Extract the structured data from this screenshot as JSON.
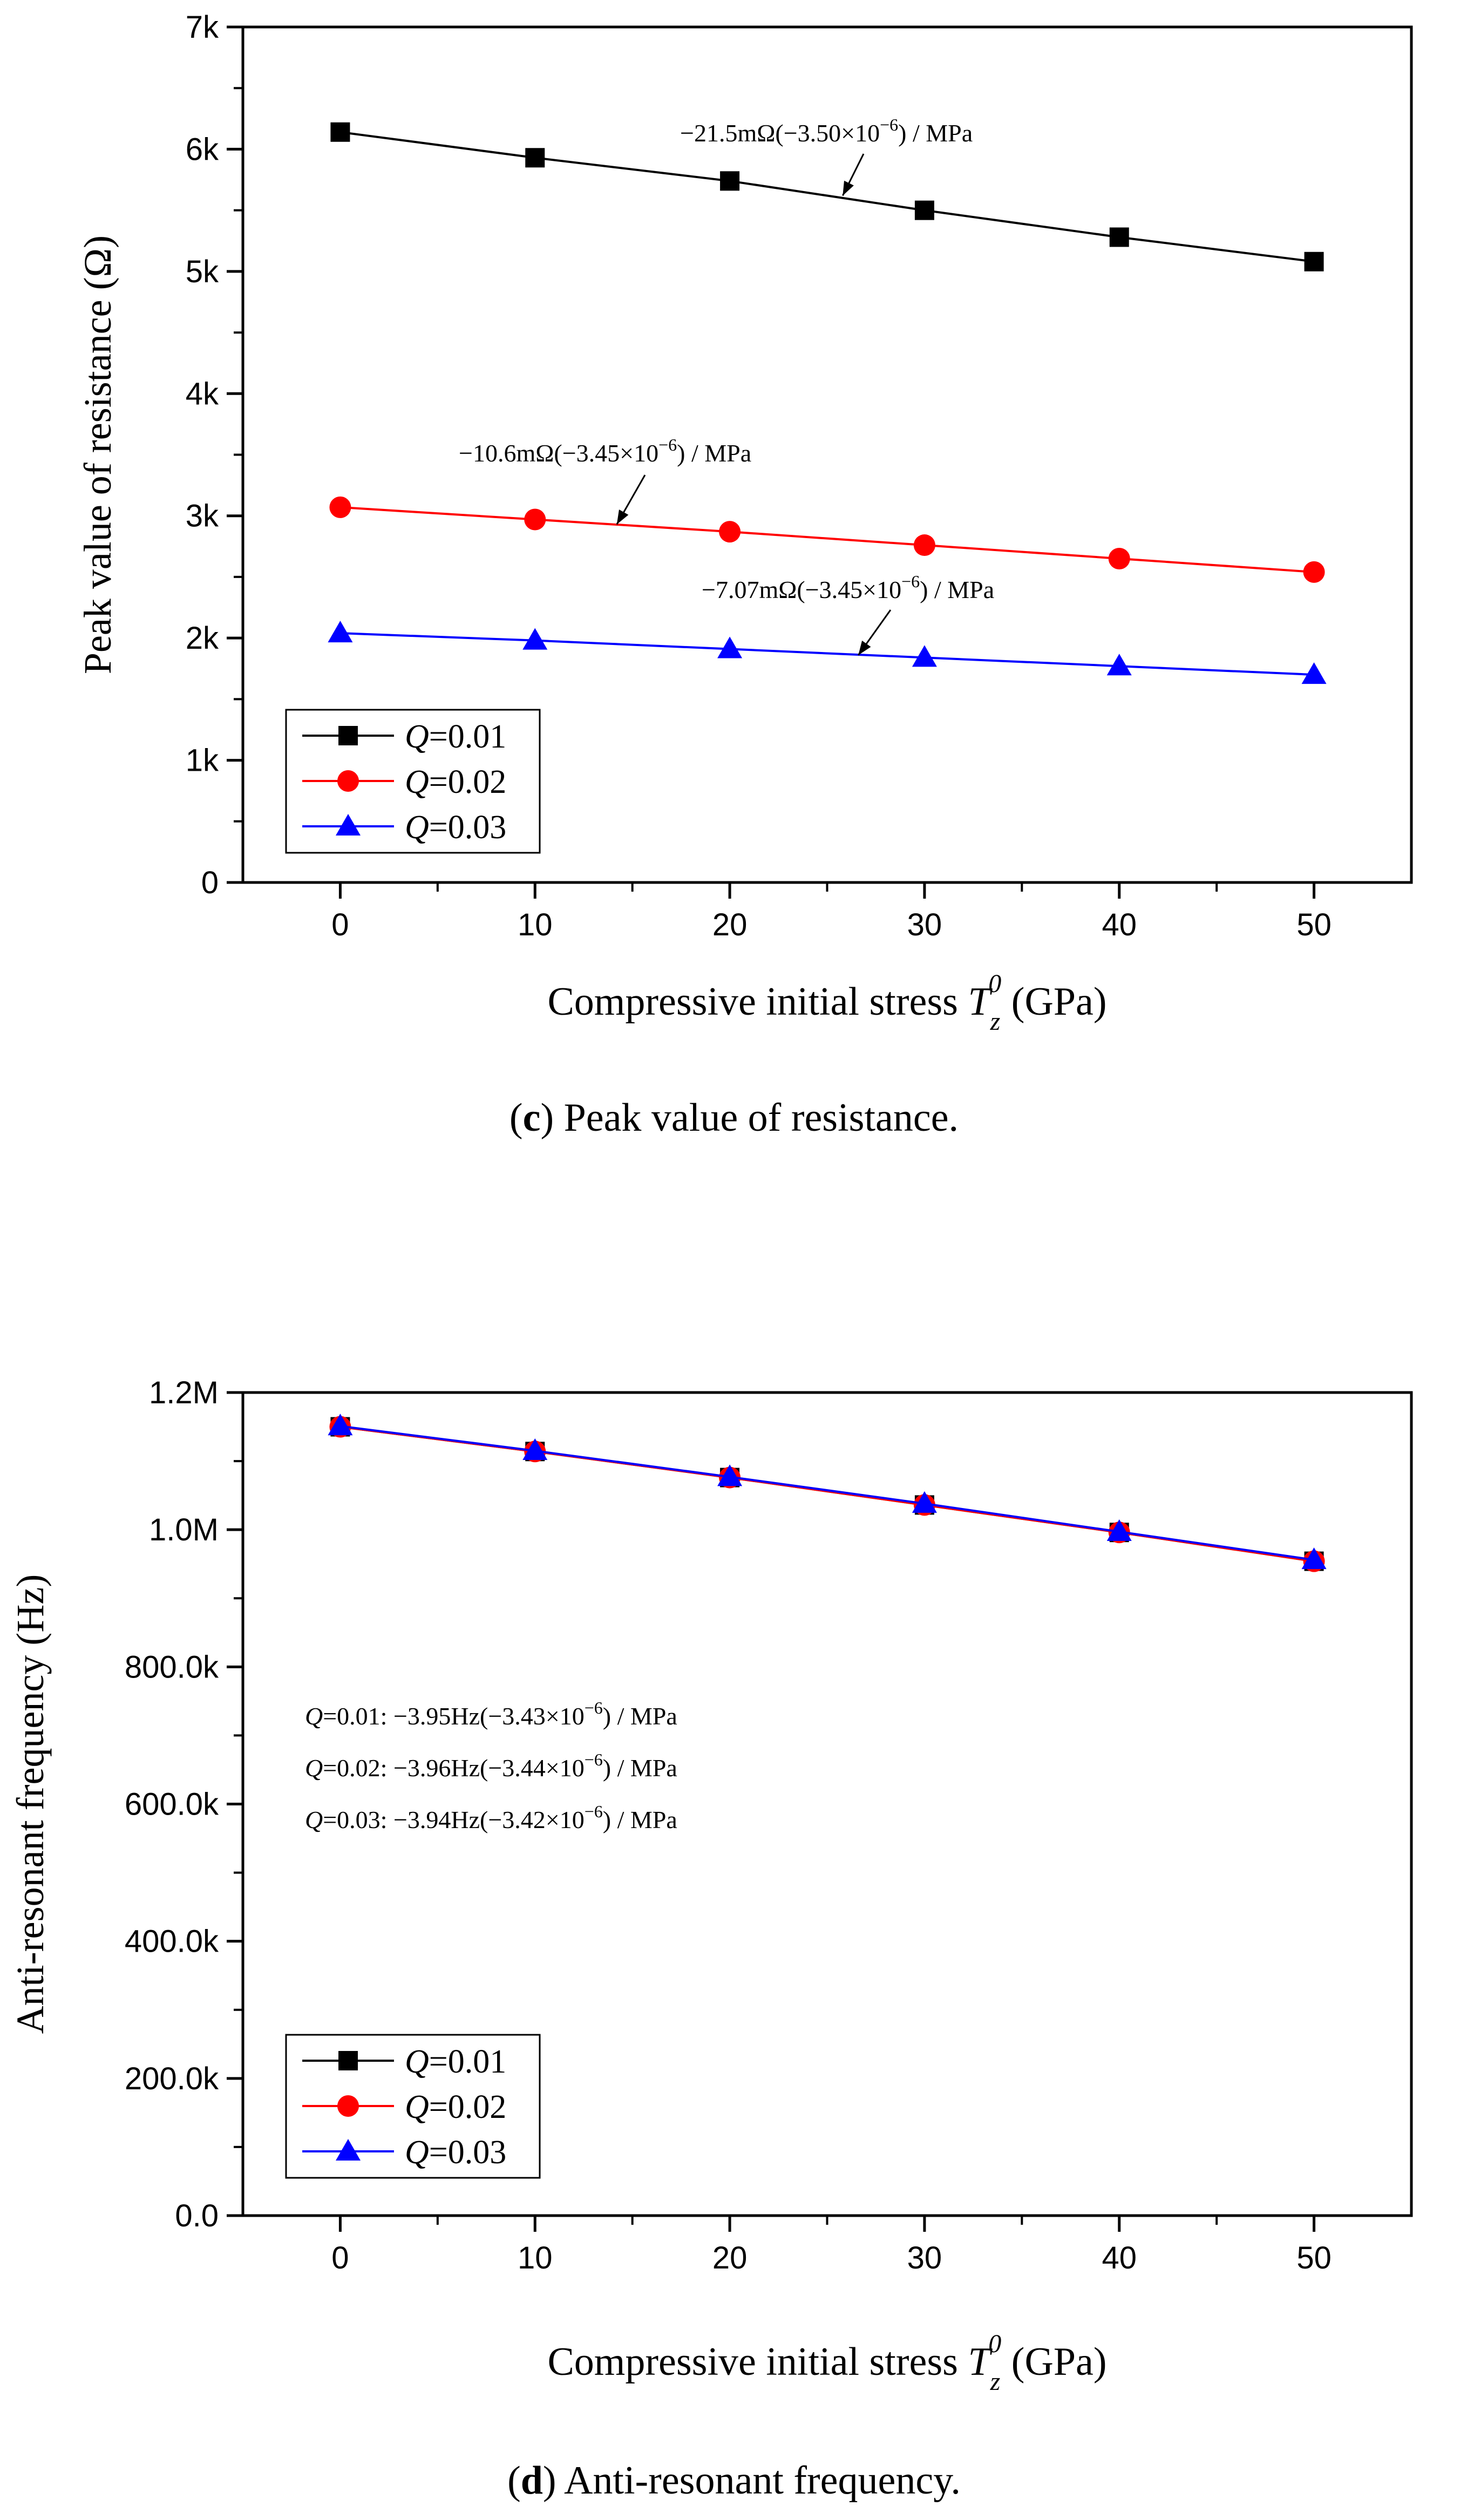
{
  "chart_data": [
    {
      "type": "line",
      "panel": "c",
      "caption_letter": "c",
      "caption_text": ") Peak value of resistance.",
      "caption_open": "(",
      "xlabel_prefix": "Compressive initial stress ",
      "xlabel_var": "T",
      "xlabel_sub": "z",
      "xlabel_sup": "0",
      "xlabel_suffix": " (GPa)",
      "ylabel": "Peak value of resistance (Ω)",
      "xlim": [
        -5,
        55
      ],
      "ylim": [
        0,
        7000
      ],
      "x_ticks": [
        0,
        10,
        20,
        30,
        40,
        50
      ],
      "y_ticks": [
        0,
        1000,
        2000,
        3000,
        4000,
        5000,
        6000,
        7000
      ],
      "x_tick_labels": [
        "0",
        "10",
        "20",
        "30",
        "40",
        "50"
      ],
      "y_tick_labels": [
        "0",
        "1k",
        "2k",
        "3k",
        "4k",
        "5k",
        "6k",
        "7k"
      ],
      "x": [
        0,
        10,
        20,
        30,
        40,
        50
      ],
      "legend_position": "bottom-left",
      "series": [
        {
          "name": "Q=0.01",
          "legend_var": "Q",
          "legend_rest": "=0.01",
          "color": "#000000",
          "marker": "square",
          "values": [
            6140,
            5930,
            5740,
            5500,
            5280,
            5080
          ]
        },
        {
          "name": "Q=0.02",
          "legend_var": "Q",
          "legend_rest": "=0.02",
          "color": "#ff0000",
          "marker": "circle",
          "values": [
            3070,
            2970,
            2870,
            2760,
            2650,
            2540
          ]
        },
        {
          "name": "Q=0.03",
          "legend_var": "Q",
          "legend_rest": "=0.03",
          "color": "#0000ff",
          "marker": "triangle",
          "values": [
            2040,
            1980,
            1910,
            1840,
            1770,
            1700
          ]
        }
      ],
      "annotations": [
        {
          "text_main": "−21.5mΩ(−3.50×10",
          "text_sup": "−6",
          "text_end": ") / MPa",
          "arrow_target": [
            25.8,
            5620
          ]
        },
        {
          "text_main": "−10.6mΩ(−3.45×10",
          "text_sup": "−6",
          "text_end": ") / MPa",
          "arrow_target": [
            14.2,
            2930
          ]
        },
        {
          "text_main": "−7.07mΩ(−3.45×10",
          "text_sup": "−6",
          "text_end": ") / MPa",
          "arrow_target": [
            26.6,
            1860
          ]
        }
      ]
    },
    {
      "type": "line",
      "panel": "d",
      "caption_letter": "d",
      "caption_text": ") Anti-resonant frequency.",
      "caption_open": "(",
      "xlabel_prefix": "Compressive initial stress ",
      "xlabel_var": "T",
      "xlabel_sub": "z",
      "xlabel_sup": "0",
      "xlabel_suffix": " (GPa)",
      "ylabel": "Anti-resonant frequency (Hz)",
      "xlim": [
        -5,
        55
      ],
      "ylim": [
        0,
        1200000
      ],
      "x_ticks": [
        0,
        10,
        20,
        30,
        40,
        50
      ],
      "y_ticks": [
        0,
        200000,
        400000,
        600000,
        800000,
        1000000,
        1200000
      ],
      "x_tick_labels": [
        "0",
        "10",
        "20",
        "30",
        "40",
        "50"
      ],
      "y_tick_labels": [
        "0.0",
        "200.0k",
        "400.0k",
        "600.0k",
        "800.0k",
        "1.0M",
        "1.2M"
      ],
      "x": [
        0,
        10,
        20,
        30,
        40,
        50
      ],
      "legend_position": "bottom-left",
      "series": [
        {
          "name": "Q=0.01",
          "legend_var": "Q",
          "legend_rest": "=0.01",
          "color": "#000000",
          "marker": "square",
          "values": [
            1150000,
            1114000,
            1076000,
            1036000,
            996000,
            954000
          ]
        },
        {
          "name": "Q=0.02",
          "legend_var": "Q",
          "legend_rest": "=0.02",
          "color": "#ff0000",
          "marker": "circle",
          "values": [
            1150000,
            1114000,
            1076000,
            1036000,
            996000,
            954000
          ]
        },
        {
          "name": "Q=0.03",
          "legend_var": "Q",
          "legend_rest": "=0.03",
          "color": "#0000ff",
          "marker": "triangle",
          "values": [
            1151000,
            1115000,
            1077000,
            1038000,
            997000,
            956000
          ]
        }
      ],
      "annotations": [
        {
          "var": "Q",
          "text_main": "=0.01: −3.95Hz(−3.43×10",
          "text_sup": "−6",
          "text_end": ") / MPa"
        },
        {
          "var": "Q",
          "text_main": "=0.02: −3.96Hz(−3.44×10",
          "text_sup": "−6",
          "text_end": ") / MPa"
        },
        {
          "var": "Q",
          "text_main": "=0.03: −3.94Hz(−3.42×10",
          "text_sup": "−6",
          "text_end": ") / MPa"
        }
      ]
    }
  ]
}
